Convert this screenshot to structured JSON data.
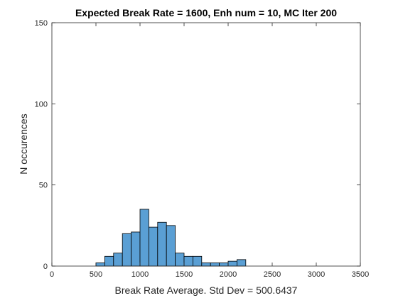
{
  "chart_data": {
    "type": "bar",
    "subtype": "histogram",
    "title": "Expected Break Rate = 1600, Enh num = 10, MC Iter 200",
    "xlabel": "Break Rate Average. Std Dev = 500.6437",
    "ylabel": "N occurences",
    "xlim": [
      0,
      3500
    ],
    "ylim": [
      0,
      150
    ],
    "xticks": [
      0,
      500,
      1000,
      1500,
      2000,
      2500,
      3000,
      3500
    ],
    "yticks": [
      0,
      50,
      100,
      150
    ],
    "bin_width": 100,
    "bins": [
      {
        "x0": 500,
        "x1": 600,
        "count": 2
      },
      {
        "x0": 600,
        "x1": 700,
        "count": 6
      },
      {
        "x0": 700,
        "x1": 800,
        "count": 8
      },
      {
        "x0": 800,
        "x1": 900,
        "count": 20
      },
      {
        "x0": 900,
        "x1": 1000,
        "count": 21
      },
      {
        "x0": 1000,
        "x1": 1100,
        "count": 35
      },
      {
        "x0": 1100,
        "x1": 1200,
        "count": 24
      },
      {
        "x0": 1200,
        "x1": 1300,
        "count": 27
      },
      {
        "x0": 1300,
        "x1": 1400,
        "count": 25
      },
      {
        "x0": 1400,
        "x1": 1500,
        "count": 8
      },
      {
        "x0": 1500,
        "x1": 1600,
        "count": 6
      },
      {
        "x0": 1600,
        "x1": 1700,
        "count": 6
      },
      {
        "x0": 1700,
        "x1": 1800,
        "count": 2
      },
      {
        "x0": 1800,
        "x1": 1900,
        "count": 2
      },
      {
        "x0": 1900,
        "x1": 2000,
        "count": 2
      },
      {
        "x0": 2000,
        "x1": 2100,
        "count": 3
      },
      {
        "x0": 2100,
        "x1": 2200,
        "count": 4
      }
    ],
    "grid": false,
    "colors": {
      "bar_fill": "#5a9fd4",
      "bar_edge": "#000000",
      "axis": "#262626"
    }
  }
}
